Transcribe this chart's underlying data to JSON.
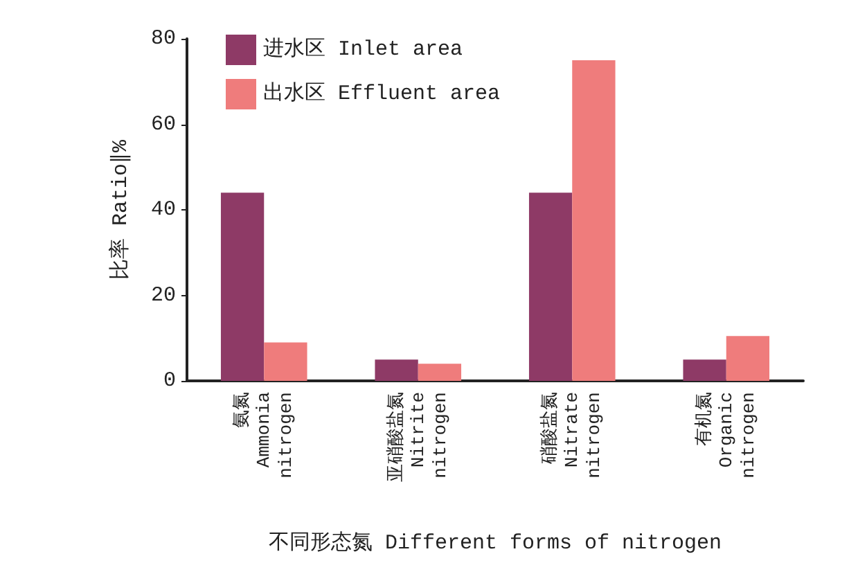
{
  "chart_data": {
    "type": "bar",
    "xlabel": "不同形态氮 Different forms of nitrogen",
    "ylabel": "比率 Ratio∥%",
    "categories": [
      "氨氮\nAmmonia\nnitrogen",
      "亚硝酸盐氮\nNitrite\nnitrogen",
      "硝酸盐氮\nNitrate\nnitrogen",
      "有机氮\nOrganic\nnitrogen"
    ],
    "series": [
      {
        "name": "进水区 Inlet area",
        "color": "#8e3a66",
        "values": [
          44,
          5,
          44,
          5
        ]
      },
      {
        "name": "出水区 Effluent area",
        "color": "#ef7c7c",
        "values": [
          9,
          4,
          75,
          10.5
        ]
      }
    ],
    "ylim": [
      0,
      80
    ],
    "yticks": [
      0,
      20,
      40,
      60,
      80
    ],
    "grid": false,
    "legend": "top left"
  }
}
